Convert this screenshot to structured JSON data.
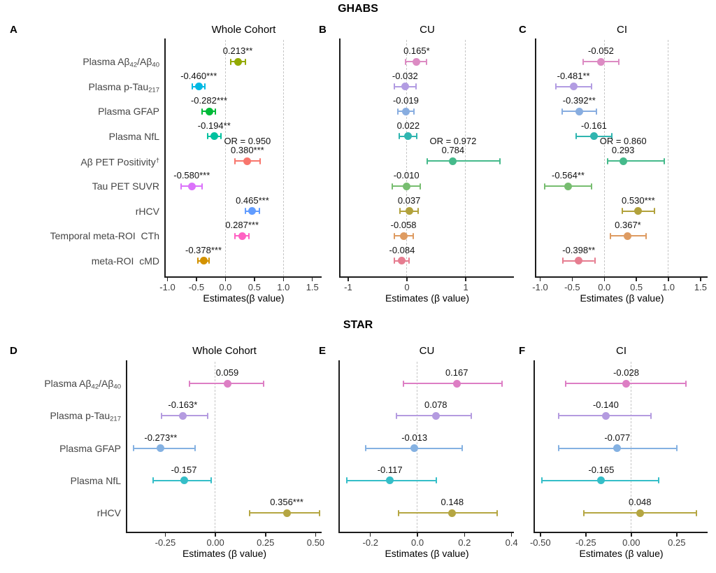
{
  "sections": [
    {
      "title": "GHABS",
      "row_labels": [
        [
          {
            "t": "Plasma Aβ"
          },
          {
            "t": "42",
            "s": "sub"
          },
          {
            "t": "/Aβ"
          },
          {
            "t": "40",
            "s": "sub"
          }
        ],
        [
          {
            "t": "Plasma p-Tau"
          },
          {
            "t": "217",
            "s": "sub"
          }
        ],
        [
          {
            "t": "Plasma GFAP"
          }
        ],
        [
          {
            "t": "Plasma NfL"
          }
        ],
        [
          {
            "t": "Aβ PET Positivity"
          },
          {
            "t": "†",
            "s": "sup"
          }
        ],
        [
          {
            "t": "Tau PET SUVR"
          }
        ],
        [
          {
            "t": "rHCV"
          }
        ],
        [
          {
            "t": "Temporal meta-ROI  CTh"
          }
        ],
        [
          {
            "t": "meta-ROI  cMD"
          }
        ]
      ]
    },
    {
      "title": "STAR",
      "row_labels": [
        [
          {
            "t": "Plasma Aβ"
          },
          {
            "t": "42",
            "s": "sub"
          },
          {
            "t": "/Aβ"
          },
          {
            "t": "40",
            "s": "sub"
          }
        ],
        [
          {
            "t": "Plasma p-Tau"
          },
          {
            "t": "217",
            "s": "sub"
          }
        ],
        [
          {
            "t": "Plasma GFAP"
          }
        ],
        [
          {
            "t": "Plasma NfL"
          }
        ],
        [
          {
            "t": "rHCV"
          }
        ]
      ]
    }
  ],
  "chart_data": [
    {
      "type": "forest",
      "letter": "A",
      "section": "GHABS",
      "title": "Whole Cohort",
      "xlabel": "Estimates(β value)",
      "xlim": [
        -1.03,
        1.66
      ],
      "xticks": [
        -1.0,
        -0.5,
        0.0,
        0.5,
        1.0,
        1.5
      ],
      "xtick_labels": [
        "-1.0",
        "-0.5",
        "0.0",
        "0.5",
        "1.0",
        "1.5"
      ],
      "ref_lines": [
        0,
        1
      ],
      "show_row_labels": true,
      "rows": [
        {
          "name": "plasma-ab42-ab40",
          "text": "0.213**",
          "estimate": 0.213,
          "ci": [
            0.09,
            0.34
          ],
          "color": "#93AA00"
        },
        {
          "name": "plasma-ptau217",
          "text": "-0.460***",
          "estimate": -0.46,
          "ci": [
            -0.57,
            -0.35
          ],
          "color": "#00B9E3"
        },
        {
          "name": "plasma-gfap",
          "text": "-0.282***",
          "estimate": -0.282,
          "ci": [
            -0.4,
            -0.17
          ],
          "color": "#00BA38"
        },
        {
          "name": "plasma-nfl",
          "text": "-0.194**",
          "estimate": -0.194,
          "ci": [
            -0.31,
            -0.08
          ],
          "color": "#00C19F"
        },
        {
          "name": "abeta-pet-positivity",
          "text": "0.380***",
          "or_label": "OR = 0.950",
          "estimate": 0.38,
          "ci": [
            0.16,
            0.6
          ],
          "color": "#F8766D"
        },
        {
          "name": "tau-pet-suvr",
          "text": "-0.580***",
          "estimate": -0.58,
          "ci": [
            -0.76,
            -0.4
          ],
          "color": "#DB72FB"
        },
        {
          "name": "rhcv",
          "text": "0.465***",
          "estimate": 0.465,
          "ci": [
            0.34,
            0.59
          ],
          "color": "#619CFF"
        },
        {
          "name": "temporal-meta-roi-cth",
          "text": "0.287***",
          "estimate": 0.287,
          "ci": [
            0.16,
            0.41
          ],
          "color": "#FF61C3"
        },
        {
          "name": "meta-roi-cmd",
          "text": "-0.378***",
          "estimate": -0.378,
          "ci": [
            -0.48,
            -0.28
          ],
          "color": "#D39200"
        }
      ]
    },
    {
      "type": "forest",
      "letter": "B",
      "section": "GHABS",
      "title": "CU",
      "xlabel": "Estimates (β value)",
      "xlim": [
        -1.13,
        1.82
      ],
      "xticks": [
        -1,
        0,
        1
      ],
      "xtick_labels": [
        "-1",
        "0",
        "1"
      ],
      "ref_lines": [
        0,
        1
      ],
      "show_row_labels": false,
      "rows": [
        {
          "name": "plasma-ab42-ab40",
          "text": "0.165*",
          "estimate": 0.165,
          "ci": [
            -0.02,
            0.33
          ],
          "color": "#DC8BC3"
        },
        {
          "name": "plasma-ptau217",
          "text": "-0.032",
          "estimate": -0.032,
          "ci": [
            -0.21,
            0.15
          ],
          "color": "#B29CE2"
        },
        {
          "name": "plasma-gfap",
          "text": "-0.019",
          "estimate": -0.019,
          "ci": [
            -0.16,
            0.12
          ],
          "color": "#88ADE0"
        },
        {
          "name": "plasma-nfl",
          "text": "0.022",
          "estimate": 0.022,
          "ci": [
            -0.13,
            0.17
          ],
          "color": "#2FB5B0"
        },
        {
          "name": "abeta-pet-positivity",
          "text": "0.784",
          "or_label": "OR = 0.972",
          "estimate": 0.784,
          "ci": [
            0.35,
            1.58
          ],
          "color": "#45BA8B"
        },
        {
          "name": "tau-pet-suvr",
          "text": "-0.010",
          "estimate": -0.01,
          "ci": [
            -0.25,
            0.23
          ],
          "color": "#77BD70"
        },
        {
          "name": "rhcv",
          "text": "0.037",
          "estimate": 0.037,
          "ci": [
            -0.12,
            0.19
          ],
          "color": "#B2A23C"
        },
        {
          "name": "temporal-meta-roi-cth",
          "text": "-0.058",
          "estimate": -0.058,
          "ci": [
            -0.22,
            0.11
          ],
          "color": "#DE9B61"
        },
        {
          "name": "meta-roi-cmd",
          "text": "-0.084",
          "estimate": -0.084,
          "ci": [
            -0.21,
            0.04
          ],
          "color": "#E67D90"
        }
      ]
    },
    {
      "type": "forest",
      "letter": "C",
      "section": "GHABS",
      "title": "CI",
      "xlabel": "Estimates (β value)",
      "xlim": [
        -1.06,
        1.61
      ],
      "xticks": [
        -1.0,
        -0.5,
        0.0,
        0.5,
        1.0,
        1.5
      ],
      "xtick_labels": [
        "-1.0",
        "-0.5",
        "0.0",
        "0.5",
        "1.0",
        "1.5"
      ],
      "ref_lines": [
        0,
        1
      ],
      "show_row_labels": false,
      "rows": [
        {
          "name": "plasma-ab42-ab40",
          "text": "-0.052",
          "estimate": -0.052,
          "ci": [
            -0.33,
            0.23
          ],
          "color": "#DC8BC3"
        },
        {
          "name": "plasma-ptau217",
          "text": "-0.481**",
          "estimate": -0.481,
          "ci": [
            -0.76,
            -0.2
          ],
          "color": "#B29CE2"
        },
        {
          "name": "plasma-gfap",
          "text": "-0.392**",
          "estimate": -0.392,
          "ci": [
            -0.66,
            -0.12
          ],
          "color": "#88ADE0"
        },
        {
          "name": "plasma-nfl",
          "text": "-0.161",
          "estimate": -0.161,
          "ci": [
            -0.44,
            0.12
          ],
          "color": "#2FB5B0"
        },
        {
          "name": "abeta-pet-positivity",
          "text": "0.293",
          "or_label": "OR = 0.860",
          "estimate": 0.293,
          "ci": [
            0.05,
            0.93
          ],
          "color": "#45BA8B"
        },
        {
          "name": "tau-pet-suvr",
          "text": "-0.564**",
          "estimate": -0.564,
          "ci": [
            -0.93,
            -0.2
          ],
          "color": "#77BD70"
        },
        {
          "name": "rhcv",
          "text": "0.530***",
          "estimate": 0.53,
          "ci": [
            0.28,
            0.78
          ],
          "color": "#B2A23C"
        },
        {
          "name": "temporal-meta-roi-cth",
          "text": "0.367*",
          "estimate": 0.367,
          "ci": [
            0.09,
            0.65
          ],
          "color": "#DE9B61"
        },
        {
          "name": "meta-roi-cmd",
          "text": "-0.398**",
          "estimate": -0.398,
          "ci": [
            -0.65,
            -0.15
          ],
          "color": "#E67D90"
        }
      ]
    },
    {
      "type": "forest",
      "letter": "D",
      "section": "STAR",
      "title": "Whole Cohort",
      "xlabel": "Estimates (β value)",
      "xlim": [
        -0.44,
        0.53
      ],
      "xticks": [
        -0.25,
        0.0,
        0.25,
        0.5
      ],
      "xtick_labels": [
        "-0.25",
        "0.00",
        "0.25",
        "0.50"
      ],
      "ref_lines": [
        0
      ],
      "show_row_labels": true,
      "rows": [
        {
          "name": "plasma-ab42-ab40",
          "text": "0.059",
          "estimate": 0.059,
          "ci": [
            -0.13,
            0.24
          ],
          "color": "#DD7EC4"
        },
        {
          "name": "plasma-ptau217",
          "text": "-0.163*",
          "estimate": -0.163,
          "ci": [
            -0.27,
            -0.04
          ],
          "color": "#B49BE0"
        },
        {
          "name": "plasma-gfap",
          "text": "-0.273**",
          "estimate": -0.273,
          "ci": [
            -0.41,
            -0.1
          ],
          "color": "#84B1E2"
        },
        {
          "name": "plasma-nfl",
          "text": "-0.157",
          "estimate": -0.157,
          "ci": [
            -0.31,
            -0.02
          ],
          "color": "#35BEC8"
        },
        {
          "name": "rhcv",
          "text": "0.356***",
          "estimate": 0.356,
          "ci": [
            0.17,
            0.52
          ],
          "color": "#B5A642"
        }
      ]
    },
    {
      "type": "forest",
      "letter": "E",
      "section": "STAR",
      "title": "CU",
      "xlabel": "Estimates (β value)",
      "xlim": [
        -0.33,
        0.41
      ],
      "xticks": [
        -0.2,
        0.0,
        0.2,
        0.4
      ],
      "xtick_labels": [
        "-0.2",
        "0.0",
        "0.2",
        "0.4"
      ],
      "ref_lines": [
        0
      ],
      "show_row_labels": false,
      "rows": [
        {
          "name": "plasma-ab42-ab40",
          "text": "0.167",
          "estimate": 0.167,
          "ci": [
            -0.06,
            0.36
          ],
          "color": "#DD7EC4"
        },
        {
          "name": "plasma-ptau217",
          "text": "0.078",
          "estimate": 0.078,
          "ci": [
            -0.09,
            0.23
          ],
          "color": "#B49BE0"
        },
        {
          "name": "plasma-gfap",
          "text": "-0.013",
          "estimate": -0.013,
          "ci": [
            -0.22,
            0.19
          ],
          "color": "#84B1E2"
        },
        {
          "name": "plasma-nfl",
          "text": "-0.117",
          "estimate": -0.117,
          "ci": [
            -0.3,
            0.08
          ],
          "color": "#35BEC8"
        },
        {
          "name": "rhcv",
          "text": "0.148",
          "estimate": 0.148,
          "ci": [
            -0.08,
            0.34
          ],
          "color": "#B5A642"
        }
      ]
    },
    {
      "type": "forest",
      "letter": "F",
      "section": "STAR",
      "title": "CI",
      "xlabel": "Estimates (β value)",
      "xlim": [
        -0.53,
        0.42
      ],
      "xticks": [
        -0.5,
        -0.25,
        0.0,
        0.25
      ],
      "xtick_labels": [
        "-0.50",
        "-0.25",
        "0.00",
        "0.25"
      ],
      "ref_lines": [
        0
      ],
      "show_row_labels": false,
      "rows": [
        {
          "name": "plasma-ab42-ab40",
          "text": "-0.028",
          "estimate": -0.028,
          "ci": [
            -0.36,
            0.3
          ],
          "color": "#DD7EC4"
        },
        {
          "name": "plasma-ptau217",
          "text": "-0.140",
          "estimate": -0.14,
          "ci": [
            -0.4,
            0.11
          ],
          "color": "#B49BE0"
        },
        {
          "name": "plasma-gfap",
          "text": "-0.077",
          "estimate": -0.077,
          "ci": [
            -0.4,
            0.25
          ],
          "color": "#84B1E2"
        },
        {
          "name": "plasma-nfl",
          "text": "-0.165",
          "estimate": -0.165,
          "ci": [
            -0.49,
            0.15
          ],
          "color": "#35BEC8"
        },
        {
          "name": "rhcv",
          "text": "0.048",
          "estimate": 0.048,
          "ci": [
            -0.26,
            0.36
          ],
          "color": "#B5A642"
        }
      ]
    }
  ]
}
